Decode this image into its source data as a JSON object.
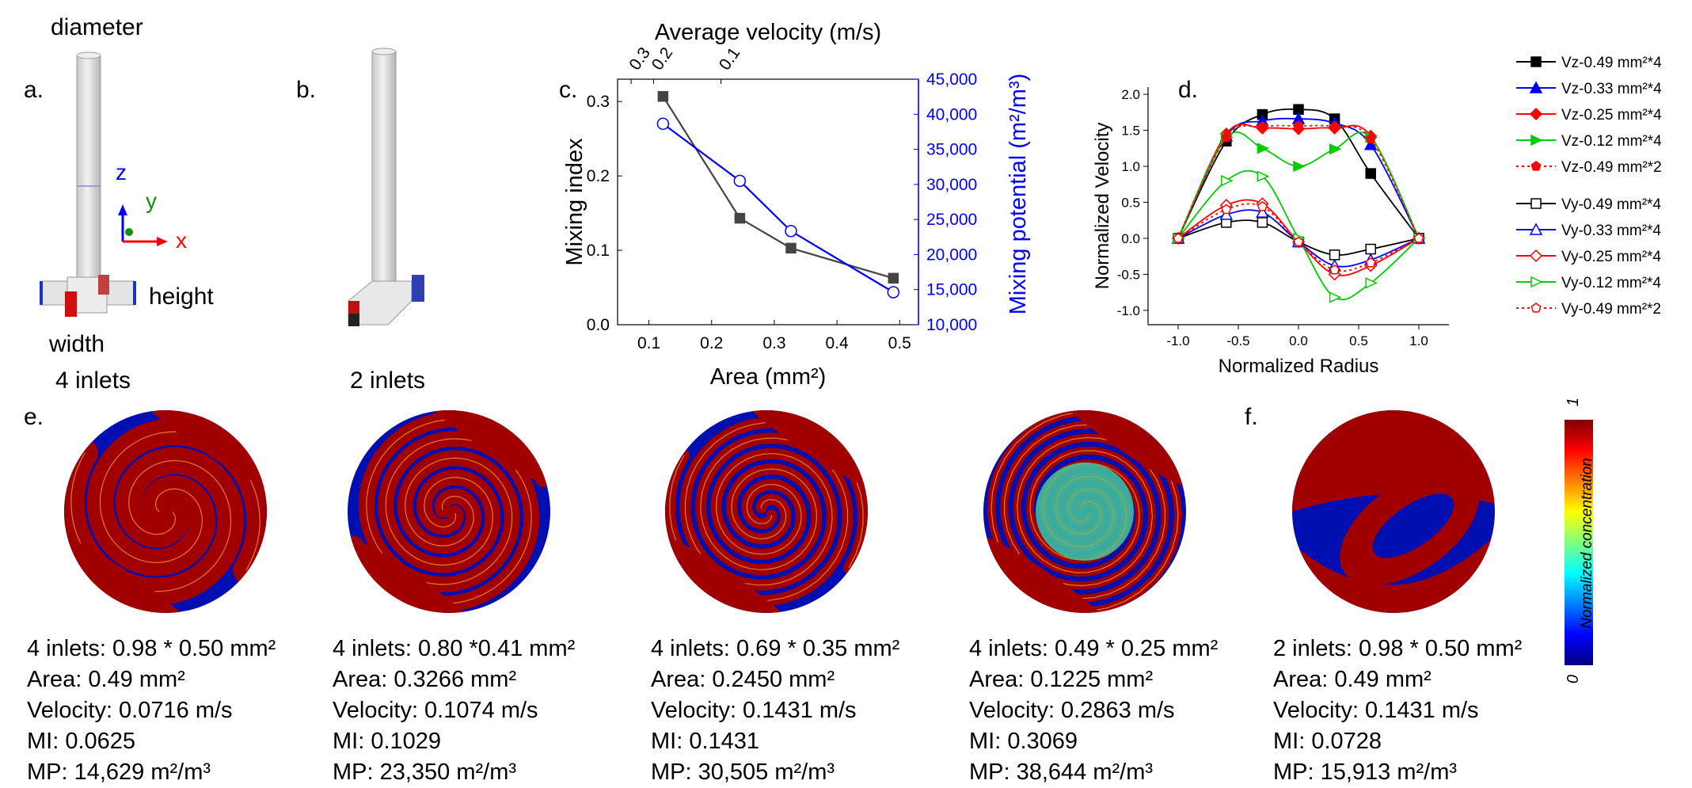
{
  "panels": {
    "a": {
      "label": "a.",
      "diameter": "diameter",
      "height": "height",
      "width": "width",
      "inlets": "4 inlets",
      "axis_z": "z",
      "axis_y": "y",
      "axis_x": "x"
    },
    "b": {
      "label": "b.",
      "inlets": "2 inlets"
    },
    "c": {
      "label": "c."
    },
    "d": {
      "label": "d."
    },
    "e": {
      "label": "e."
    },
    "f": {
      "label": "f."
    }
  },
  "chart_data": [
    {
      "id": "c",
      "type": "line",
      "xlabel": "Area (mm²)",
      "top_xlabel": "Average velocity (m/s)",
      "ylabel": "Mixing index",
      "ylabel_right": "Mixing potential (m²/m³)",
      "xlim": [
        0.05,
        0.53
      ],
      "ylim": [
        0,
        0.33
      ],
      "ylim_right": [
        10000,
        45000
      ],
      "x_ticks": [
        0.1,
        0.2,
        0.3,
        0.4,
        0.5
      ],
      "y_ticks": [
        0.0,
        0.1,
        0.2,
        0.3
      ],
      "y_ticks_right": [
        "10,000",
        "15,000",
        "20,000",
        "25,000",
        "30,000",
        "35,000",
        "40,000",
        "45,000"
      ],
      "top_ticks": [
        {
          "label": "0.3",
          "x": 0.0716
        },
        {
          "label": "0.2",
          "x": 0.1074
        },
        {
          "label": "0.1",
          "x": 0.215
        }
      ],
      "series": [
        {
          "axis": "left",
          "color": "#444444",
          "marker": "square",
          "x": [
            0.1225,
            0.245,
            0.3266,
            0.49
          ],
          "y": [
            0.3069,
            0.1431,
            0.1029,
            0.0625
          ]
        },
        {
          "axis": "right",
          "color": "#0000ff",
          "marker": "open-circle",
          "x": [
            0.1225,
            0.245,
            0.3266,
            0.49
          ],
          "y": [
            38644,
            30505,
            23350,
            14629
          ]
        }
      ]
    },
    {
      "id": "d",
      "type": "line",
      "xlabel": "Normalized Radius",
      "ylabel": "Normalized Velocity",
      "xlim": [
        -1.25,
        1.25
      ],
      "ylim": [
        -1.2,
        2.1
      ],
      "x_ticks": [
        "-1.0",
        "-0.5",
        "0.0",
        "0.5",
        "1.0"
      ],
      "y_ticks": [
        "-1.0",
        "-0.5",
        "0.0",
        "0.5",
        "1.0",
        "1.5",
        "2.0"
      ],
      "legend_position": "top-right outside",
      "x": [
        -1.0,
        -0.6,
        -0.3,
        0.0,
        0.3,
        0.6,
        1.0
      ],
      "series": [
        {
          "name": "Vz-0.49 mm²*4",
          "color": "#000000",
          "marker": "square",
          "open": false,
          "dotted": false,
          "values": [
            0.0,
            1.35,
            1.72,
            1.79,
            1.66,
            0.9,
            0.0
          ]
        },
        {
          "name": "Vz-0.33 mm²*4",
          "color": "#0000ff",
          "marker": "triangle",
          "open": false,
          "dotted": false,
          "values": [
            0.0,
            1.42,
            1.63,
            1.66,
            1.6,
            1.3,
            0.0
          ]
        },
        {
          "name": "Vz-0.25 mm²*4",
          "color": "#ff0000",
          "marker": "diamond",
          "open": false,
          "dotted": false,
          "values": [
            0.0,
            1.45,
            1.53,
            1.52,
            1.53,
            1.42,
            0.0
          ]
        },
        {
          "name": "Vz-0.12 mm²*4",
          "color": "#00cc00",
          "marker": "tri-right",
          "open": false,
          "dotted": false,
          "values": [
            0.0,
            1.4,
            1.25,
            1.0,
            1.24,
            1.4,
            0.0
          ]
        },
        {
          "name": "Vz-0.49 mm²*2",
          "color": "#ff0000",
          "marker": "pentagon",
          "open": false,
          "dotted": true,
          "values": [
            0.0,
            1.4,
            1.55,
            1.56,
            1.55,
            1.38,
            0.0
          ]
        },
        {
          "name": "Vy-0.49 mm²*4",
          "color": "#000000",
          "marker": "square",
          "open": true,
          "dotted": false,
          "values": [
            0.0,
            0.22,
            0.22,
            -0.05,
            -0.23,
            -0.15,
            0.0
          ]
        },
        {
          "name": "Vy-0.33 mm²*4",
          "color": "#0000ff",
          "marker": "triangle",
          "open": true,
          "dotted": false,
          "values": [
            0.0,
            0.33,
            0.36,
            -0.05,
            -0.38,
            -0.3,
            0.0
          ]
        },
        {
          "name": "Vy-0.25 mm²*4",
          "color": "#ff0000",
          "marker": "diamond",
          "open": true,
          "dotted": false,
          "values": [
            0.0,
            0.46,
            0.48,
            -0.05,
            -0.5,
            -0.38,
            0.0
          ]
        },
        {
          "name": "Vy-0.12 mm²*4",
          "color": "#00cc00",
          "marker": "tri-right",
          "open": true,
          "dotted": false,
          "values": [
            0.0,
            0.8,
            0.86,
            0.0,
            -0.82,
            -0.62,
            0.0
          ]
        },
        {
          "name": "Vy-0.49 mm²*2",
          "color": "#ff0000",
          "marker": "pentagon",
          "open": true,
          "dotted": true,
          "values": [
            0.0,
            0.4,
            0.44,
            -0.05,
            -0.44,
            -0.34,
            0.0
          ]
        }
      ]
    }
  ],
  "captions": [
    {
      "config": "4 inlets: 0.98 * 0.50 mm²",
      "area": "Area: 0.49 mm²",
      "velocity": "Velocity: 0.0716 m/s",
      "mi": "MI: 0.0625",
      "mp": "MP: 14,629 m²/m³"
    },
    {
      "config": "4 inlets: 0.80 *0.41 mm²",
      "area": "Area: 0.3266 mm²",
      "velocity": "Velocity: 0.1074 m/s",
      "mi": "MI: 0.1029",
      "mp": "MP: 23,350 m²/m³"
    },
    {
      "config": "4 inlets: 0.69 * 0.35 mm²",
      "area": "Area: 0.2450 mm²",
      "velocity": "Velocity: 0.1431 m/s",
      "mi": "MI: 0.1431",
      "mp": "MP: 30,505 m²/m³"
    },
    {
      "config": "4 inlets: 0.49 * 0.25 mm²",
      "area": "Area: 0.1225 mm²",
      "velocity": "Velocity: 0.2863 m/s",
      "mi": "MI: 0.3069",
      "mp": "MP: 38,644 m²/m³"
    },
    {
      "config": "2 inlets: 0.98 * 0.50 mm²",
      "area": "Area: 0.49 mm²",
      "velocity": "Velocity: 0.1431 m/s",
      "mi": "MI: 0.0728",
      "mp": "MP: 15,913 m²/m³"
    }
  ],
  "colorbar": {
    "title": "Normalized concentration",
    "max": "1",
    "min": "0"
  },
  "colors": {
    "red": "#a00000",
    "blue": "#0010b0"
  }
}
